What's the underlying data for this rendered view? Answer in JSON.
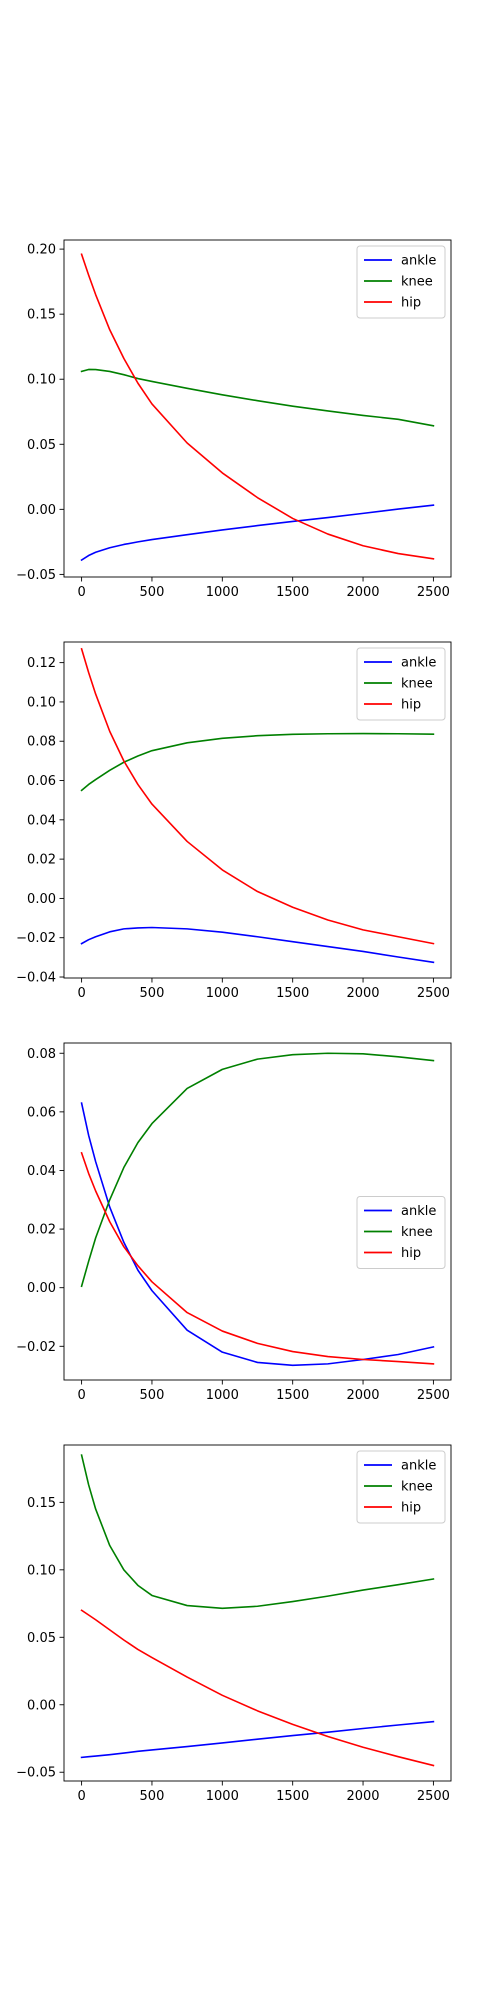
{
  "figure": {
    "background": "#ffffff"
  },
  "chart_data": [
    {
      "type": "line",
      "legend_position": "upper-right",
      "xlim": [
        -125,
        2625
      ],
      "ylim": [
        -0.052,
        0.207
      ],
      "xticks": [
        0,
        500,
        1000,
        1500,
        2000,
        2500
      ],
      "xtick_labels": [
        "0",
        "500",
        "1000",
        "1500",
        "2000",
        "2500"
      ],
      "yticks": [
        -0.05,
        0.0,
        0.05,
        0.1,
        0.15,
        0.2
      ],
      "ytick_labels": [
        "−0.05",
        "0.00",
        "0.05",
        "0.10",
        "0.15",
        "0.20"
      ],
      "x": [
        0,
        50,
        100,
        200,
        300,
        400,
        500,
        750,
        1000,
        1250,
        1500,
        1750,
        2000,
        2250,
        2500
      ],
      "series": [
        {
          "name": "ankle",
          "color": "#0000ff",
          "values": [
            -0.039,
            -0.0355,
            -0.033,
            -0.0295,
            -0.027,
            -0.025,
            -0.0232,
            -0.0195,
            -0.0158,
            -0.0125,
            -0.0093,
            -0.0063,
            -0.0031,
            0.0002,
            0.0032
          ]
        },
        {
          "name": "knee",
          "color": "#008000",
          "values": [
            0.106,
            0.1075,
            0.1074,
            0.106,
            0.1035,
            0.1005,
            0.0983,
            0.093,
            0.088,
            0.0835,
            0.0793,
            0.0756,
            0.0722,
            0.0692,
            0.0642
          ]
        },
        {
          "name": "hip",
          "color": "#ff0000",
          "values": [
            0.196,
            0.18,
            0.165,
            0.138,
            0.116,
            0.097,
            0.081,
            0.051,
            0.028,
            0.009,
            -0.007,
            -0.019,
            -0.028,
            -0.034,
            -0.038
          ]
        }
      ]
    },
    {
      "type": "line",
      "legend_position": "upper-right",
      "xlim": [
        -125,
        2625
      ],
      "ylim": [
        -0.0405,
        0.1305
      ],
      "xticks": [
        0,
        500,
        1000,
        1500,
        2000,
        2500
      ],
      "xtick_labels": [
        "0",
        "500",
        "1000",
        "1500",
        "2000",
        "2500"
      ],
      "yticks": [
        -0.04,
        -0.02,
        0.0,
        0.02,
        0.04,
        0.06,
        0.08,
        0.1,
        0.12
      ],
      "ytick_labels": [
        "−0.04",
        "−0.02",
        "0.00",
        "0.02",
        "0.04",
        "0.06",
        "0.08",
        "0.10",
        "0.12"
      ],
      "x": [
        0,
        50,
        100,
        200,
        300,
        400,
        500,
        750,
        1000,
        1250,
        1500,
        1750,
        2000,
        2250,
        2500
      ],
      "series": [
        {
          "name": "ankle",
          "color": "#0000ff",
          "values": [
            -0.023,
            -0.021,
            -0.0195,
            -0.017,
            -0.0155,
            -0.015,
            -0.0148,
            -0.0155,
            -0.0172,
            -0.0195,
            -0.022,
            -0.0245,
            -0.027,
            -0.0298,
            -0.0325
          ]
        },
        {
          "name": "knee",
          "color": "#008000",
          "values": [
            0.055,
            0.058,
            0.0605,
            0.0652,
            0.0693,
            0.0725,
            0.0752,
            0.0792,
            0.0815,
            0.0828,
            0.0835,
            0.0838,
            0.0839,
            0.0838,
            0.0836
          ]
        },
        {
          "name": "hip",
          "color": "#ff0000",
          "values": [
            0.127,
            0.115,
            0.104,
            0.085,
            0.07,
            0.058,
            0.048,
            0.029,
            0.0145,
            0.0035,
            -0.0045,
            -0.011,
            -0.016,
            -0.0195,
            -0.023
          ]
        }
      ]
    },
    {
      "type": "line",
      "legend_position": "center-right",
      "xlim": [
        -125,
        2625
      ],
      "ylim": [
        -0.0315,
        0.0835
      ],
      "xticks": [
        0,
        500,
        1000,
        1500,
        2000,
        2500
      ],
      "xtick_labels": [
        "0",
        "500",
        "1000",
        "1500",
        "2000",
        "2500"
      ],
      "yticks": [
        -0.02,
        0.0,
        0.02,
        0.04,
        0.06,
        0.08
      ],
      "ytick_labels": [
        "−0.02",
        "0.00",
        "0.02",
        "0.04",
        "0.06",
        "0.08"
      ],
      "x": [
        0,
        50,
        100,
        200,
        300,
        400,
        500,
        750,
        1000,
        1250,
        1500,
        1750,
        2000,
        2250,
        2500
      ],
      "series": [
        {
          "name": "ankle",
          "color": "#0000ff",
          "values": [
            0.063,
            0.052,
            0.043,
            0.0275,
            0.0155,
            0.006,
            -0.001,
            -0.0145,
            -0.022,
            -0.0255,
            -0.0265,
            -0.026,
            -0.0245,
            -0.0228,
            -0.0202
          ]
        },
        {
          "name": "knee",
          "color": "#008000",
          "values": [
            0.0005,
            0.009,
            0.017,
            0.03,
            0.041,
            0.0495,
            0.056,
            0.068,
            0.0745,
            0.078,
            0.0795,
            0.08,
            0.0798,
            0.0788,
            0.0775
          ]
        },
        {
          "name": "hip",
          "color": "#ff0000",
          "values": [
            0.046,
            0.039,
            0.033,
            0.0225,
            0.014,
            0.0075,
            0.002,
            -0.0085,
            -0.0148,
            -0.019,
            -0.0218,
            -0.0235,
            -0.0245,
            -0.0252,
            -0.026
          ]
        }
      ]
    },
    {
      "type": "line",
      "legend_position": "upper-right",
      "xlim": [
        -125,
        2625
      ],
      "ylim": [
        -0.0565,
        0.1925
      ],
      "xticks": [
        0,
        500,
        1000,
        1500,
        2000,
        2500
      ],
      "xtick_labels": [
        "0",
        "500",
        "1000",
        "1500",
        "2000",
        "2500"
      ],
      "yticks": [
        -0.05,
        0.0,
        0.05,
        0.1,
        0.15
      ],
      "ytick_labels": [
        "−0.05",
        "0.00",
        "0.05",
        "0.10",
        "0.15"
      ],
      "x": [
        0,
        50,
        100,
        200,
        300,
        400,
        500,
        750,
        1000,
        1250,
        1500,
        1750,
        2000,
        2250,
        2500
      ],
      "series": [
        {
          "name": "ankle",
          "color": "#0000ff",
          "values": [
            -0.039,
            -0.0385,
            -0.038,
            -0.037,
            -0.0358,
            -0.0345,
            -0.0335,
            -0.031,
            -0.0283,
            -0.0255,
            -0.0228,
            -0.0203,
            -0.0176,
            -0.015,
            -0.0125
          ]
        },
        {
          "name": "knee",
          "color": "#008000",
          "values": [
            0.185,
            0.163,
            0.145,
            0.118,
            0.1,
            0.0885,
            0.081,
            0.0735,
            0.0715,
            0.073,
            0.0765,
            0.0805,
            0.085,
            0.089,
            0.0932
          ]
        },
        {
          "name": "hip",
          "color": "#ff0000",
          "values": [
            0.07,
            0.0665,
            0.063,
            0.0555,
            0.048,
            0.041,
            0.035,
            0.0205,
            0.007,
            -0.0045,
            -0.0145,
            -0.0235,
            -0.0315,
            -0.0385,
            -0.045
          ]
        }
      ]
    }
  ]
}
